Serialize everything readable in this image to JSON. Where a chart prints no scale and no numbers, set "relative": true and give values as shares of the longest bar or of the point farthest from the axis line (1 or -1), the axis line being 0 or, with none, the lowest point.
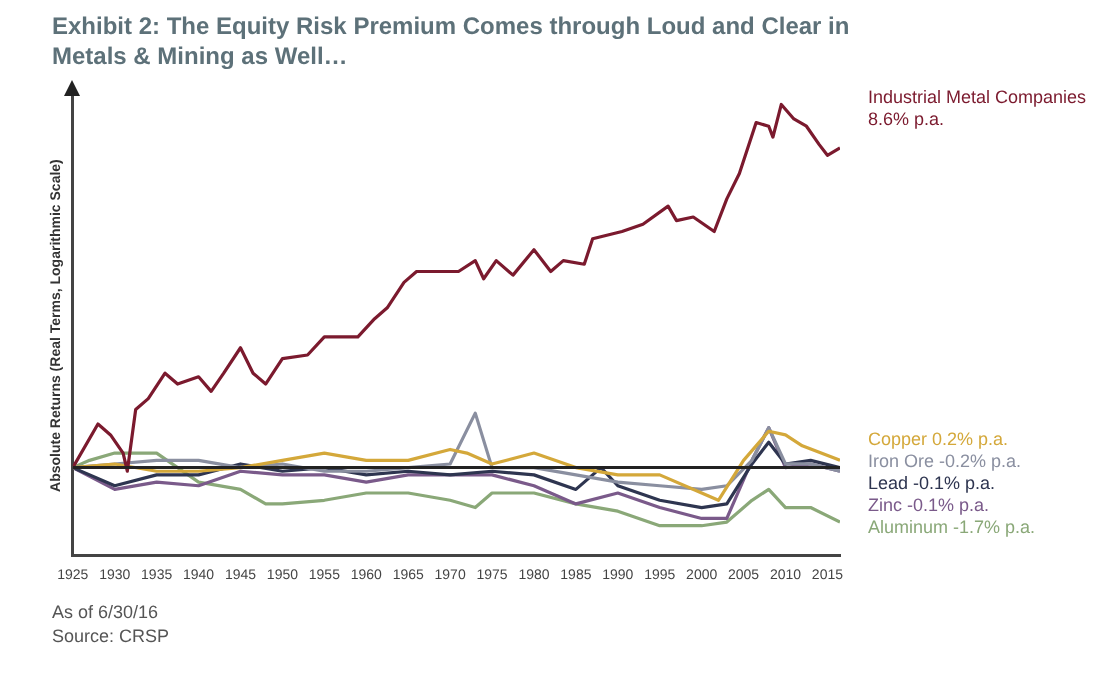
{
  "chart_data": {
    "type": "line",
    "title": "Exhibit 2: The Equity Risk Premium Comes through Loud and Clear in Metals & Mining as Well…",
    "ylabel": "Absolute Returns (Real Terms, Logarithmic Scale)",
    "relative": true,
    "grid": false,
    "legend": false,
    "tick_labels": "x",
    "marker": "none",
    "line_style": "solid",
    "xlim": [
      1925,
      2016.5
    ],
    "xticks": [
      1925,
      1930,
      1935,
      1940,
      1945,
      1950,
      1955,
      1960,
      1965,
      1970,
      1975,
      1980,
      1985,
      1990,
      1995,
      2000,
      2005,
      2010,
      2015
    ],
    "annotations": [
      "As of 6/30/16",
      "Source: CRSP"
    ],
    "series": [
      {
        "name": "Industrial Metal Companies 8.6% p.a.",
        "color": "#7b1a2e",
        "x": [
          1925,
          1928,
          1929.5,
          1931,
          1931.5,
          1932.5,
          1934,
          1936,
          1937.5,
          1940,
          1941.5,
          1943,
          1945,
          1946.5,
          1948,
          1950,
          1953,
          1955,
          1957,
          1959,
          1961,
          1962.5,
          1964.5,
          1966,
          1968.5,
          1971,
          1973,
          1974,
          1975.5,
          1977.5,
          1980,
          1982,
          1983.5,
          1986,
          1987,
          1990.5,
          1993,
          1996,
          1997,
          1999,
          2001.5,
          2003,
          2004.5,
          2006.5,
          2008,
          2008.5,
          2009.5,
          2011,
          2012.5,
          2014,
          2015,
          2016.5
        ],
        "values": [
          0,
          0.12,
          0.09,
          0.04,
          -0.01,
          0.16,
          0.19,
          0.26,
          0.23,
          0.25,
          0.21,
          0.26,
          0.33,
          0.26,
          0.23,
          0.3,
          0.31,
          0.36,
          0.36,
          0.36,
          0.41,
          0.44,
          0.51,
          0.54,
          0.54,
          0.54,
          0.57,
          0.52,
          0.57,
          0.53,
          0.6,
          0.54,
          0.57,
          0.56,
          0.63,
          0.65,
          0.67,
          0.72,
          0.68,
          0.69,
          0.65,
          0.74,
          0.81,
          0.95,
          0.94,
          0.91,
          1,
          0.96,
          0.94,
          0.89,
          0.86,
          0.88
        ]
      },
      {
        "name": "Copper 0.2% p.a.",
        "color": "#d4a83a",
        "x": [
          1925,
          1930,
          1935,
          1940,
          1945,
          1950,
          1955,
          1960,
          1965,
          1970,
          1972,
          1975,
          1980,
          1985,
          1990,
          1995,
          2000,
          2002,
          2005,
          2008,
          2010,
          2012,
          2016.5
        ],
        "values": [
          0,
          0.01,
          -0.01,
          -0.01,
          0,
          0.02,
          0.04,
          0.02,
          0.02,
          0.05,
          0.04,
          0.01,
          0.04,
          0,
          -0.02,
          -0.02,
          -0.07,
          -0.09,
          0.02,
          0.1,
          0.09,
          0.06,
          0.02
        ]
      },
      {
        "name": "Iron Ore -0.2% p.a.",
        "color": "#8a8fa0",
        "x": [
          1925,
          1930,
          1935,
          1940,
          1945,
          1950,
          1955,
          1960,
          1965,
          1970,
          1973,
          1975,
          1980,
          1985,
          1990,
          1995,
          2000,
          2003,
          2006,
          2008,
          2010,
          2013,
          2016.5
        ],
        "values": [
          0,
          0.01,
          0.02,
          0.02,
          0,
          0.01,
          -0.01,
          -0.01,
          0,
          0.01,
          0.15,
          0,
          0,
          -0.02,
          -0.04,
          -0.05,
          -0.06,
          -0.05,
          0.02,
          0.11,
          0.01,
          0.01,
          -0.01
        ]
      },
      {
        "name": "Lead -0.1% p.a.",
        "color": "#2e3550",
        "x": [
          1925,
          1930,
          1935,
          1940,
          1945,
          1950,
          1955,
          1960,
          1965,
          1970,
          1975,
          1980,
          1985,
          1988,
          1990,
          1995,
          2000,
          2003,
          2006,
          2008,
          2010,
          2013,
          2016.5
        ],
        "values": [
          0,
          -0.05,
          -0.02,
          -0.02,
          0.01,
          -0.01,
          0,
          -0.02,
          -0.01,
          -0.02,
          -0.01,
          -0.02,
          -0.06,
          0,
          -0.05,
          -0.09,
          -0.11,
          -0.1,
          0.01,
          0.07,
          0.01,
          0.02,
          0
        ]
      },
      {
        "name": "Zinc -0.1% p.a.",
        "color": "#7a5a8a",
        "x": [
          1925,
          1930,
          1935,
          1940,
          1945,
          1950,
          1955,
          1960,
          1965,
          1970,
          1975,
          1980,
          1985,
          1990,
          1995,
          2000,
          2003,
          2006,
          2008,
          2010,
          2013,
          2016.5
        ],
        "values": [
          0,
          -0.06,
          -0.04,
          -0.05,
          -0.01,
          -0.02,
          -0.02,
          -0.04,
          -0.02,
          -0.02,
          -0.02,
          -0.05,
          -0.1,
          -0.07,
          -0.11,
          -0.14,
          -0.14,
          0.02,
          0.11,
          0,
          0.01,
          -0.01
        ]
      },
      {
        "name": "Aluminum -1.7% p.a.",
        "color": "#8aa878",
        "x": [
          1925,
          1927,
          1930,
          1935,
          1940,
          1945,
          1948,
          1950,
          1955,
          1960,
          1965,
          1970,
          1973,
          1975,
          1980,
          1985,
          1990,
          1995,
          2000,
          2003,
          2006,
          2008,
          2010,
          2013,
          2016.5
        ],
        "values": [
          0,
          0.02,
          0.04,
          0.04,
          -0.04,
          -0.06,
          -0.1,
          -0.1,
          -0.09,
          -0.07,
          -0.07,
          -0.09,
          -0.11,
          -0.07,
          -0.07,
          -0.1,
          -0.12,
          -0.16,
          -0.16,
          -0.15,
          -0.09,
          -0.06,
          -0.11,
          -0.11,
          -0.15
        ]
      }
    ]
  }
}
